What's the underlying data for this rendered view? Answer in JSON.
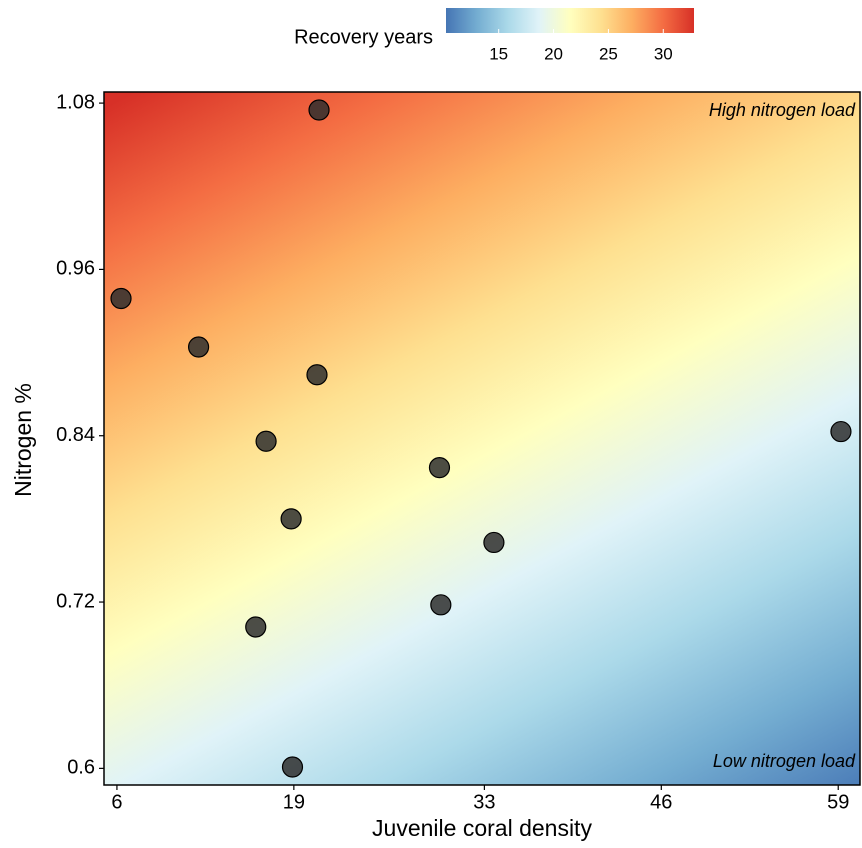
{
  "chart_data": {
    "type": "scatter",
    "x_label": "Juvenile coral density",
    "y_label": "Nitrogen %",
    "x": [
      20.85,
      6.3,
      12.0,
      20.7,
      16.96,
      29.7,
      18.8,
      33.7,
      29.8,
      16.2,
      18.9,
      59.2
    ],
    "values": [
      1.075,
      0.939,
      0.904,
      0.884,
      0.836,
      0.817,
      0.78,
      0.763,
      0.718,
      0.702,
      0.601,
      0.843
    ],
    "color": "#2e2e2e",
    "xlim": [
      5.05,
      60.6
    ],
    "ylim": [
      0.588,
      1.088
    ],
    "xticks": [
      6,
      19,
      33,
      46,
      59
    ],
    "yticks": [
      0.6,
      0.72,
      0.84,
      0.96,
      1.08
    ],
    "annotations": [
      "High nitrogen load",
      "Low nitrogen load"
    ],
    "colorbar": {
      "title": "Recovery years",
      "lim": [
        10.2,
        32.8
      ],
      "ticks": [
        15,
        20,
        25,
        30
      ],
      "colors": [
        "#4575b4",
        "#74add1",
        "#abd9e9",
        "#e0f3f8",
        "#ffffbf",
        "#fee090",
        "#fdae61",
        "#f46d43",
        "#d73027"
      ]
    },
    "surface": {
      "top_left": 33,
      "top_right": 25,
      "bottom_left": 19,
      "bottom_right": 10.5
    }
  }
}
